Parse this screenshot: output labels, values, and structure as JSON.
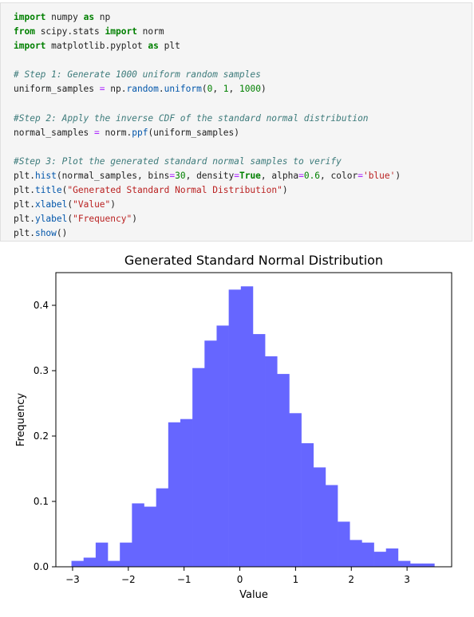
{
  "code_cell": {
    "lines": [
      [
        {
          "t": "import",
          "c": "kw"
        },
        {
          "t": " numpy ",
          "c": "plain"
        },
        {
          "t": "as",
          "c": "kw"
        },
        {
          "t": " np",
          "c": "plain"
        }
      ],
      [
        {
          "t": "from",
          "c": "kw"
        },
        {
          "t": " scipy.stats ",
          "c": "plain"
        },
        {
          "t": "import",
          "c": "kw"
        },
        {
          "t": " norm",
          "c": "plain"
        }
      ],
      [
        {
          "t": "import",
          "c": "kw"
        },
        {
          "t": " matplotlib.pyplot ",
          "c": "plain"
        },
        {
          "t": "as",
          "c": "kw"
        },
        {
          "t": " plt",
          "c": "plain"
        }
      ],
      [],
      [
        {
          "t": "# Step 1: Generate 1000 uniform random samples",
          "c": "com"
        }
      ],
      [
        {
          "t": "uniform_samples ",
          "c": "plain"
        },
        {
          "t": "=",
          "c": "op"
        },
        {
          "t": " np.",
          "c": "plain"
        },
        {
          "t": "random",
          "c": "fn"
        },
        {
          "t": ".",
          "c": "plain"
        },
        {
          "t": "uniform",
          "c": "fn"
        },
        {
          "t": "(",
          "c": "plain"
        },
        {
          "t": "0",
          "c": "num"
        },
        {
          "t": ", ",
          "c": "plain"
        },
        {
          "t": "1",
          "c": "num"
        },
        {
          "t": ", ",
          "c": "plain"
        },
        {
          "t": "1000",
          "c": "num"
        },
        {
          "t": ")",
          "c": "plain"
        }
      ],
      [],
      [
        {
          "t": "#Step 2: Apply the inverse CDF of the standard normal distribution",
          "c": "com"
        }
      ],
      [
        {
          "t": "normal_samples ",
          "c": "plain"
        },
        {
          "t": "=",
          "c": "op"
        },
        {
          "t": " norm.",
          "c": "plain"
        },
        {
          "t": "ppf",
          "c": "fn"
        },
        {
          "t": "(uniform_samples)",
          "c": "plain"
        }
      ],
      [],
      [
        {
          "t": "#Step 3: Plot the generated standard normal samples to verify",
          "c": "com"
        }
      ],
      [
        {
          "t": "plt.",
          "c": "plain"
        },
        {
          "t": "hist",
          "c": "fn"
        },
        {
          "t": "(normal_samples, bins",
          "c": "plain"
        },
        {
          "t": "=",
          "c": "op"
        },
        {
          "t": "30",
          "c": "num"
        },
        {
          "t": ", density",
          "c": "plain"
        },
        {
          "t": "=",
          "c": "op"
        },
        {
          "t": "True",
          "c": "kw"
        },
        {
          "t": ", alpha",
          "c": "plain"
        },
        {
          "t": "=",
          "c": "op"
        },
        {
          "t": "0.6",
          "c": "num"
        },
        {
          "t": ", color",
          "c": "plain"
        },
        {
          "t": "=",
          "c": "op"
        },
        {
          "t": "'blue'",
          "c": "str"
        },
        {
          "t": ")",
          "c": "plain"
        }
      ],
      [
        {
          "t": "plt.",
          "c": "plain"
        },
        {
          "t": "title",
          "c": "fn"
        },
        {
          "t": "(",
          "c": "plain"
        },
        {
          "t": "\"Generated Standard Normal Distribution\"",
          "c": "str"
        },
        {
          "t": ")",
          "c": "plain"
        }
      ],
      [
        {
          "t": "plt.",
          "c": "plain"
        },
        {
          "t": "xlabel",
          "c": "fn"
        },
        {
          "t": "(",
          "c": "plain"
        },
        {
          "t": "\"Value\"",
          "c": "str"
        },
        {
          "t": ")",
          "c": "plain"
        }
      ],
      [
        {
          "t": "plt.",
          "c": "plain"
        },
        {
          "t": "ylabel",
          "c": "fn"
        },
        {
          "t": "(",
          "c": "plain"
        },
        {
          "t": "\"Frequency\"",
          "c": "str"
        },
        {
          "t": ")",
          "c": "plain"
        }
      ],
      [
        {
          "t": "plt.",
          "c": "plain"
        },
        {
          "t": "show",
          "c": "fn"
        },
        {
          "t": "()",
          "c": "plain"
        }
      ]
    ]
  },
  "chart_data": {
    "type": "bar",
    "title": "Generated Standard Normal Distribution",
    "xlabel": "Value",
    "ylabel": "Frequency",
    "color": "#6666ff",
    "xlim": [
      -3.3,
      3.8
    ],
    "ylim": [
      0,
      0.45
    ],
    "xticks": [
      -3,
      -2,
      -1,
      0,
      1,
      2,
      3
    ],
    "xtick_labels": [
      "−3",
      "−2",
      "−1",
      "0",
      "1",
      "2",
      "3"
    ],
    "yticks": [
      0.0,
      0.1,
      0.2,
      0.3,
      0.4
    ],
    "ytick_labels": [
      "0.0",
      "0.1",
      "0.2",
      "0.3",
      "0.4"
    ],
    "grid": false,
    "bin_edges": [
      -3.02,
      -2.803,
      -2.586,
      -2.369,
      -2.152,
      -1.935,
      -1.718,
      -1.501,
      -1.284,
      -1.067,
      -0.85,
      -0.633,
      -0.416,
      -0.199,
      0.018,
      0.235,
      0.452,
      0.669,
      0.886,
      1.103,
      1.32,
      1.537,
      1.754,
      1.971,
      2.188,
      2.405,
      2.622,
      2.839,
      3.056,
      3.273,
      3.49
    ],
    "values": [
      0.009,
      0.014,
      0.037,
      0.009,
      0.037,
      0.097,
      0.092,
      0.12,
      0.221,
      0.226,
      0.304,
      0.346,
      0.369,
      0.424,
      0.429,
      0.356,
      0.322,
      0.295,
      0.235,
      0.189,
      0.152,
      0.125,
      0.069,
      0.041,
      0.037,
      0.023,
      0.028,
      0.009,
      0.005,
      0.005
    ]
  }
}
